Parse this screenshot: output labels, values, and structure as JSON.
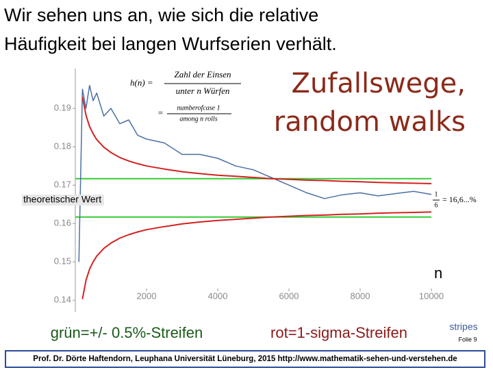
{
  "slide": {
    "title_lines": [
      "Wir sehen uns an, wie sich die relative",
      "Häufigkeit bei langen Wurfserien verhält."
    ],
    "formula": {
      "lhs": "h(n) =",
      "num1": "Zahl der Einsen",
      "den1": "unter n Würfen",
      "eq": "=",
      "num2": "numberofcase 1",
      "den2": "among n rolls"
    },
    "heading_lines": [
      "Zufallswege,",
      "random walks"
    ],
    "theory_label": "theoretischer Wert",
    "theory_num": "1",
    "theory_den": "6",
    "theory_value": "= 16,6...%",
    "green_note": "grün=+/- 0.5%-Streifen",
    "red_note": "rot=1-sigma-Streifen",
    "stripes": "stripes",
    "slide_no": "Folie 9",
    "footer": "Prof. Dr. Dörte Haftendorn, Leuphana Universität Lüneburg, 2015  http://www.mathematik-sehen-und-verstehen.de"
  },
  "chart_data": {
    "type": "line",
    "xlabel": "n",
    "x": [
      100,
      200,
      300,
      400,
      500,
      600,
      800,
      1000,
      1250,
      1500,
      1750,
      2000,
      2500,
      3000,
      3500,
      4000,
      4500,
      5000,
      5500,
      6000,
      6500,
      7000,
      7500,
      8000,
      8500,
      9000,
      9500,
      10000
    ],
    "series": [
      {
        "color": "#4a6fa5",
        "values": [
          0.15,
          0.195,
          0.19,
          0.196,
          0.192,
          0.194,
          0.188,
          0.19,
          0.186,
          0.187,
          0.183,
          0.182,
          0.181,
          0.178,
          0.178,
          0.177,
          0.175,
          0.174,
          0.172,
          0.17,
          0.168,
          0.1665,
          0.1675,
          0.168,
          0.1672,
          0.1678,
          0.1684,
          0.1676
        ]
      },
      {
        "color": "#d42020",
        "values": [
          null,
          0.193,
          0.1882,
          0.1853,
          0.1834,
          0.1819,
          0.1799,
          0.1785,
          0.1772,
          0.1763,
          0.1756,
          0.175,
          0.1742,
          0.1735,
          0.173,
          0.1726,
          0.1723,
          0.172,
          0.1717,
          0.1715,
          0.1713,
          0.1712,
          0.171,
          0.1709,
          0.1707,
          0.1706,
          0.1705,
          0.1704
        ]
      },
      {
        "color": "#d42020",
        "values": [
          null,
          0.1403,
          0.1452,
          0.1481,
          0.15,
          0.1515,
          0.1535,
          0.1549,
          0.1562,
          0.1571,
          0.1578,
          0.1584,
          0.1592,
          0.1599,
          0.1604,
          0.1608,
          0.1611,
          0.1614,
          0.1617,
          0.1619,
          0.1621,
          0.1622,
          0.1624,
          0.1625,
          0.1627,
          0.1628,
          0.1629,
          0.163
        ]
      }
    ],
    "bands": {
      "color": "#33cc33",
      "values": [
        0.1717,
        0.1617
      ]
    },
    "xlim": [
      0,
      10000
    ],
    "xticks": [
      2000,
      4000,
      6000,
      8000,
      10000
    ],
    "ylim": [
      0.137,
      0.2004
    ],
    "yticks": [
      0.14,
      0.15,
      0.16,
      0.17,
      0.18,
      0.19
    ]
  }
}
